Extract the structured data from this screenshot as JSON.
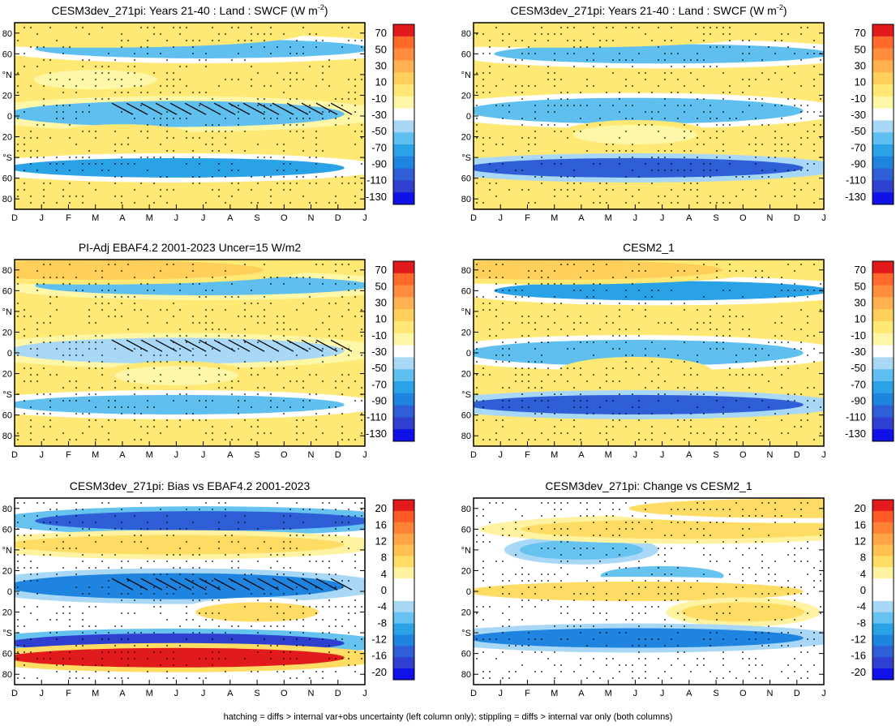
{
  "footer_note": "hatching = diffs > internal var+obs uncertainty (left column only); stippling = diffs > internal var only (both columns)",
  "palettes": {
    "main": {
      "labels": [
        "70",
        "50",
        "30",
        "10",
        "-10",
        "-30",
        "-50",
        "-70",
        "-90",
        "-110",
        "-130"
      ],
      "colors": [
        "#e31a1c",
        "#ff6a2a",
        "#ff8c3f",
        "#ffb14f",
        "#ffcf5a",
        "#ffe873",
        "#fff7a8",
        "#ffffff",
        "#a8d8f5",
        "#5fbfee",
        "#2aa2e6",
        "#1f84df",
        "#2f5fd6",
        "#2f3fd0",
        "#1010e8"
      ]
    },
    "diff": {
      "labels": [
        "20",
        "16",
        "12",
        "8",
        "4",
        "0",
        "-4",
        "-8",
        "-12",
        "-16",
        "-20"
      ],
      "colors": [
        "#e31a1c",
        "#ff5a25",
        "#ff8135",
        "#ffa545",
        "#ffc14f",
        "#ffdc63",
        "#fff3a1",
        "#ffffff",
        "#ffffff",
        "#a8d8f5",
        "#66c3ef",
        "#2aa2e6",
        "#1f84df",
        "#2f5fd6",
        "#2f3fd0",
        "#1010e8"
      ]
    }
  },
  "axes": {
    "x_ticks": [
      "D",
      "J",
      "F",
      "M",
      "A",
      "M",
      "J",
      "J",
      "A",
      "S",
      "O",
      "N",
      "D",
      "J"
    ],
    "y_ticks": [
      "80",
      "60",
      "°N",
      "20",
      "0",
      "20",
      "°S",
      "60",
      "80"
    ]
  },
  "chart_data": [
    {
      "type": "heatmap",
      "title": "CESM3dev_271pi: Years 21-40 : Land : SWCF (W m",
      "title_sup": "-2",
      "title_tail": ")",
      "palette": "main",
      "hatching": true,
      "bands": [
        {
          "lat": 65,
          "month": 7,
          "value": -60
        },
        {
          "lat": 2,
          "month": 6,
          "value": -55
        },
        {
          "lat": -50,
          "month": 6,
          "value": -75
        },
        {
          "lat": -22,
          "month": 4,
          "value": -5
        },
        {
          "lat": 35,
          "month": 3,
          "value": -8
        },
        {
          "lat": 80,
          "month": 3,
          "value": 5
        }
      ]
    },
    {
      "type": "heatmap",
      "title": "CESM3dev_271pi: Years 21-40 : Land : SWCF (W m",
      "title_sup": "-2",
      "title_tail": ")",
      "palette": "main",
      "hatching": false,
      "bands": [
        {
          "lat": 60,
          "month": 7,
          "value": -65
        },
        {
          "lat": 5,
          "month": 6,
          "value": -60
        },
        {
          "lat": -50,
          "month": 6,
          "value": -100
        },
        {
          "lat": -18,
          "month": 6,
          "value": -8
        },
        {
          "lat": 80,
          "month": 3,
          "value": 5
        }
      ]
    },
    {
      "type": "heatmap",
      "title": "PI-Adj EBAF4.2 2001-2023 Uncer=15 W/m2",
      "title_sup": "",
      "title_tail": "",
      "palette": "main",
      "hatching": true,
      "bands": [
        {
          "lat": 65,
          "month": 7,
          "value": -55
        },
        {
          "lat": 2,
          "month": 6,
          "value": -50
        },
        {
          "lat": -50,
          "month": 6,
          "value": -60
        },
        {
          "lat": -22,
          "month": 6,
          "value": -8
        },
        {
          "lat": 80,
          "month": 3,
          "value": 8
        }
      ]
    },
    {
      "type": "heatmap",
      "title": "CESM2_1",
      "title_sup": "",
      "title_tail": "",
      "palette": "main",
      "hatching": false,
      "bands": [
        {
          "lat": 60,
          "month": 7,
          "value": -70
        },
        {
          "lat": 0,
          "month": 6,
          "value": -65
        },
        {
          "lat": -50,
          "month": 6,
          "value": -110
        },
        {
          "lat": -18,
          "month": 6,
          "value": -5
        },
        {
          "lat": 80,
          "month": 3,
          "value": 8
        }
      ]
    },
    {
      "type": "heatmap",
      "title": "CESM3dev_271pi: Bias vs EBAF4.2 2001-2023",
      "title_sup": "",
      "title_tail": "",
      "palette": "diff",
      "hatching": true,
      "bands": [
        {
          "lat": 68,
          "month": 7,
          "value": -14
        },
        {
          "lat": 45,
          "month": 6,
          "value": 8
        },
        {
          "lat": 5,
          "month": 6,
          "value": -12
        },
        {
          "lat": -20,
          "month": 9,
          "value": 6
        },
        {
          "lat": -50,
          "month": 6,
          "value": -18
        },
        {
          "lat": -64,
          "month": 6,
          "value": 20
        }
      ]
    },
    {
      "type": "heatmap",
      "title": "CESM3dev_271pi: Change vs CESM2_1",
      "title_sup": "",
      "title_tail": "",
      "palette": "diff",
      "hatching": false,
      "bands": [
        {
          "lat": 40,
          "month": 4,
          "value": -8
        },
        {
          "lat": 60,
          "month": 8,
          "value": 8
        },
        {
          "lat": 15,
          "month": 7,
          "value": -6
        },
        {
          "lat": 0,
          "month": 6,
          "value": 6
        },
        {
          "lat": -20,
          "month": 10,
          "value": 8
        },
        {
          "lat": -45,
          "month": 6,
          "value": -12
        },
        {
          "lat": 80,
          "month": 12,
          "value": 6
        }
      ]
    }
  ]
}
